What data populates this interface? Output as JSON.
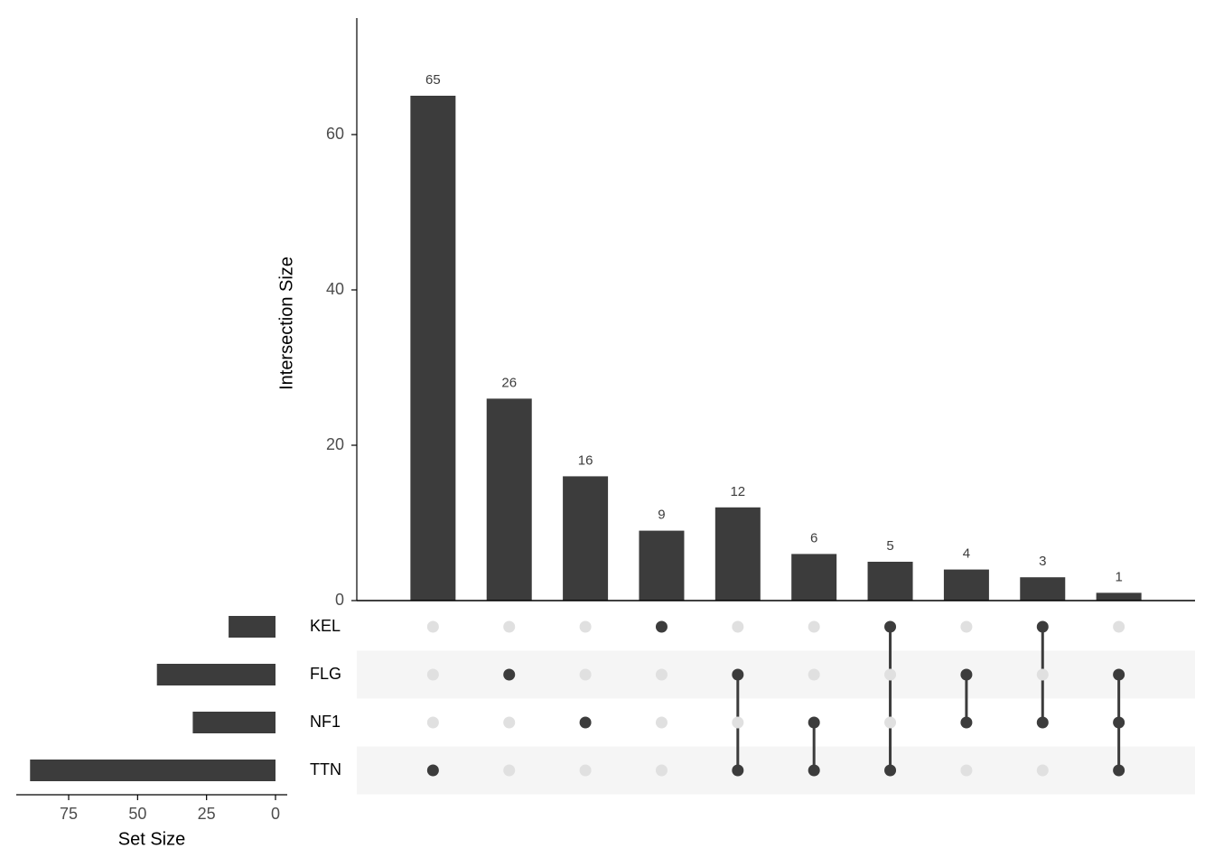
{
  "chart_data": {
    "type": "upset",
    "y_label": "Intersection Size",
    "x_label": "Set Size",
    "sets": [
      "KEL",
      "FLG",
      "NF1",
      "TTN"
    ],
    "set_sizes": [
      17,
      43,
      30,
      89
    ],
    "set_xlim": [
      94,
      0
    ],
    "set_xticks": [
      75,
      50,
      25,
      0
    ],
    "values": [
      65,
      26,
      16,
      9,
      12,
      6,
      5,
      4,
      3,
      1
    ],
    "membership": [
      [
        false,
        false,
        false,
        true
      ],
      [
        false,
        true,
        false,
        false
      ],
      [
        false,
        false,
        true,
        false
      ],
      [
        true,
        false,
        false,
        false
      ],
      [
        false,
        true,
        false,
        true
      ],
      [
        false,
        false,
        true,
        true
      ],
      [
        true,
        false,
        false,
        true
      ],
      [
        false,
        true,
        true,
        false
      ],
      [
        true,
        false,
        true,
        false
      ],
      [
        false,
        true,
        true,
        true
      ]
    ],
    "ylim": [
      0,
      75
    ],
    "yticks": [
      0,
      20,
      40,
      60
    ],
    "color": "#3c3c3c",
    "inactive_color": "#e0e0e0",
    "stripe_color": "#f5f5f5"
  }
}
